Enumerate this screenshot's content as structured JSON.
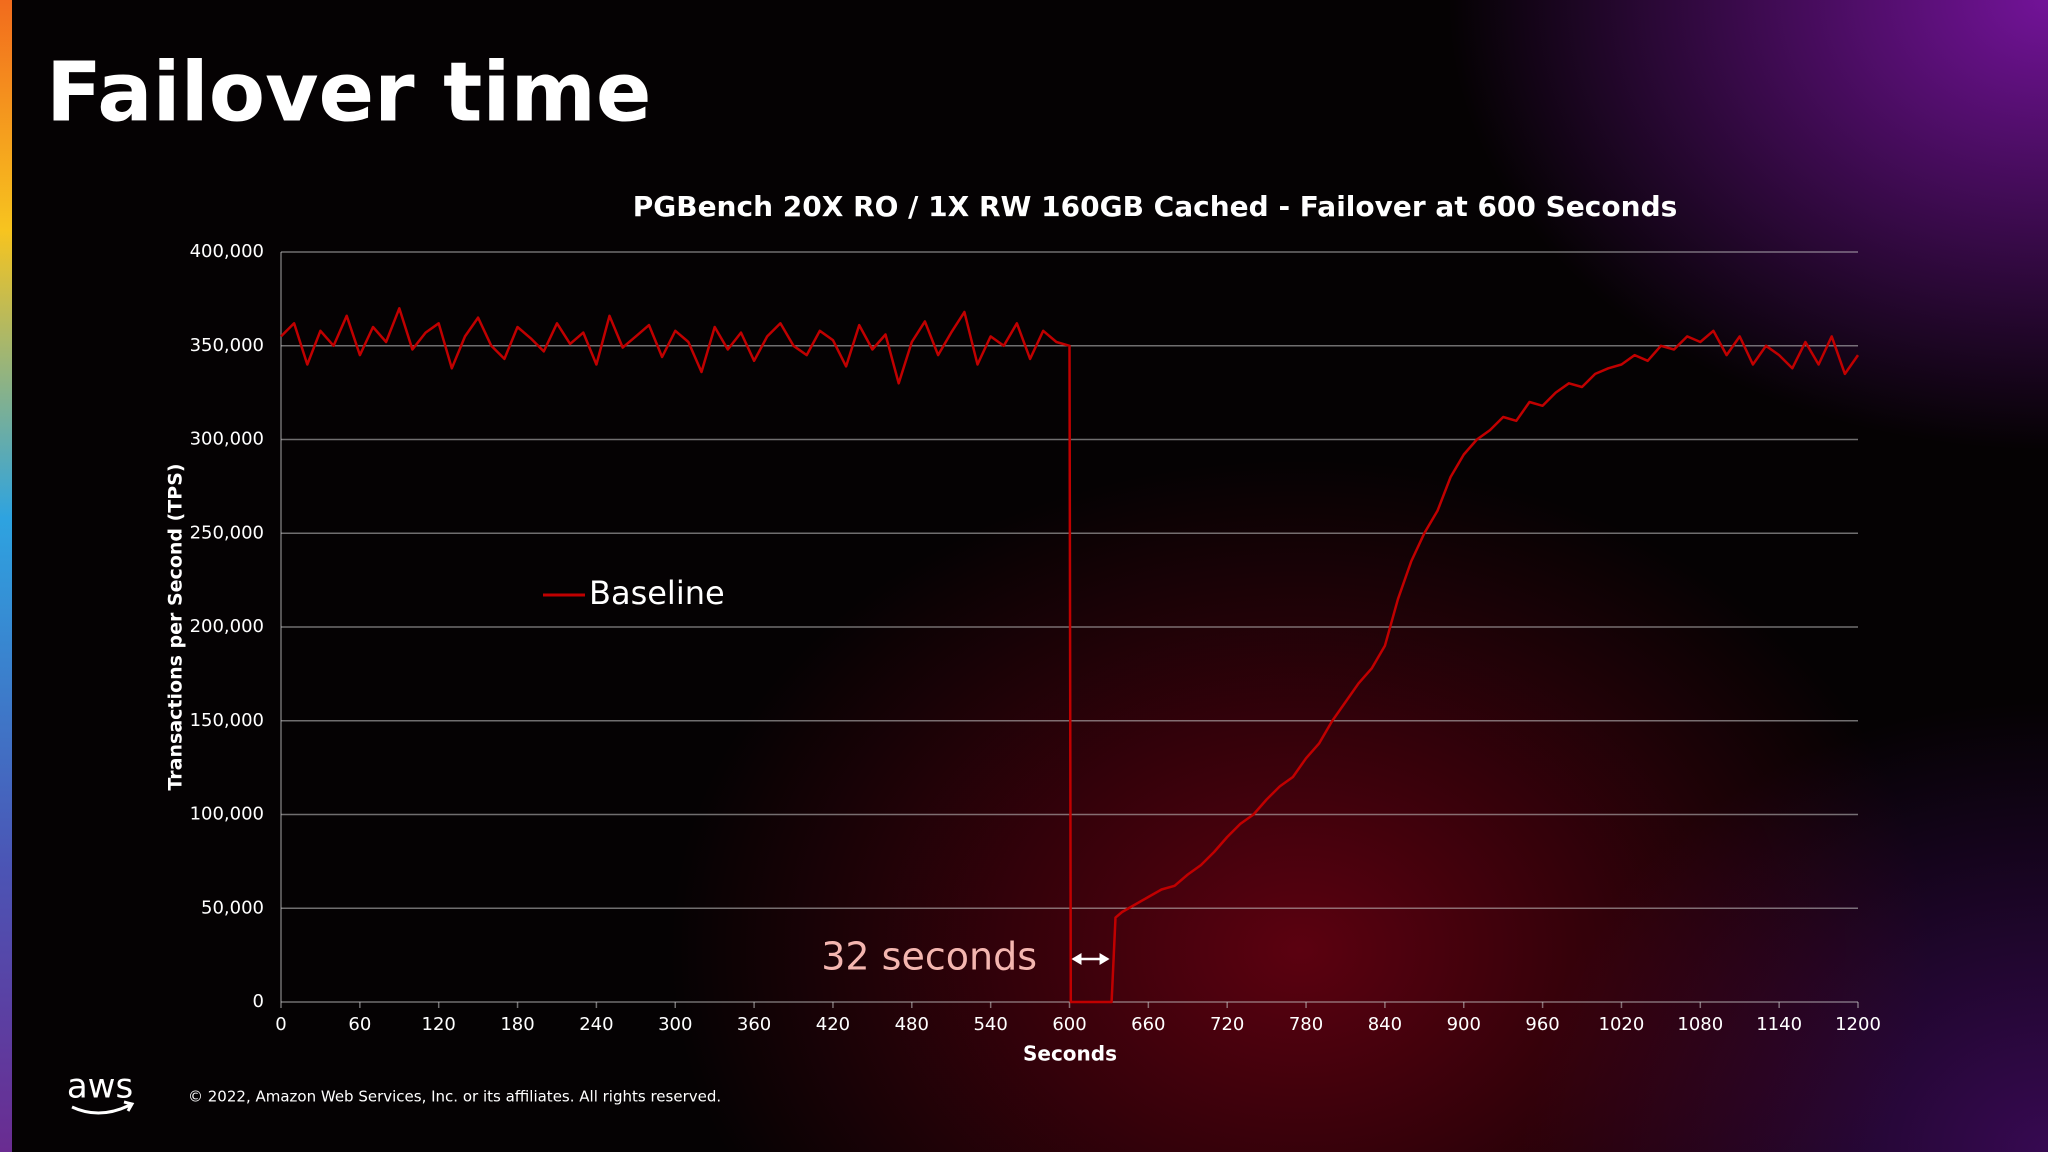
{
  "slide": {
    "title": "Failover time",
    "logo": "aws",
    "footer": "© 2022, Amazon Web Services, Inc. or its affiliates. All rights reserved."
  },
  "chart_data": {
    "type": "line",
    "title": "PGBench 20X RO / 1X RW 160GB Cached - Failover at 600 Seconds",
    "x_label": "Seconds",
    "y_label": "Transactions per Second (TPS)",
    "x": [
      0,
      10,
      20,
      30,
      40,
      50,
      60,
      70,
      80,
      90,
      100,
      110,
      120,
      130,
      140,
      150,
      160,
      170,
      180,
      190,
      200,
      210,
      220,
      230,
      240,
      250,
      260,
      270,
      280,
      290,
      300,
      310,
      320,
      330,
      340,
      350,
      360,
      370,
      380,
      390,
      400,
      410,
      420,
      430,
      440,
      450,
      460,
      470,
      480,
      490,
      500,
      510,
      520,
      530,
      540,
      550,
      560,
      570,
      580,
      590,
      600,
      601,
      632,
      635,
      640,
      650,
      660,
      670,
      680,
      690,
      700,
      710,
      720,
      730,
      740,
      750,
      760,
      770,
      780,
      790,
      800,
      810,
      820,
      830,
      840,
      850,
      860,
      870,
      880,
      890,
      900,
      910,
      920,
      930,
      940,
      950,
      960,
      970,
      980,
      990,
      1000,
      1010,
      1020,
      1030,
      1040,
      1050,
      1060,
      1070,
      1080,
      1090,
      1100,
      1110,
      1120,
      1130,
      1140,
      1150,
      1160,
      1170,
      1180,
      1190,
      1200
    ],
    "series": [
      {
        "name": "Baseline",
        "color": "#c00000",
        "values": [
          355000,
          362000,
          340000,
          358000,
          350000,
          366000,
          345000,
          360000,
          352000,
          370000,
          348000,
          357000,
          362000,
          338000,
          355000,
          365000,
          350000,
          343000,
          360000,
          354000,
          347000,
          362000,
          351000,
          357000,
          340000,
          366000,
          349000,
          355000,
          361000,
          344000,
          358000,
          352000,
          336000,
          360000,
          348000,
          357000,
          342000,
          355000,
          362000,
          350000,
          345000,
          358000,
          353000,
          339000,
          361000,
          348000,
          356000,
          330000,
          352000,
          363000,
          345000,
          357000,
          368000,
          340000,
          355000,
          350000,
          362000,
          343000,
          358000,
          352000,
          350000,
          0,
          0,
          45000,
          48000,
          52000,
          56000,
          60000,
          62000,
          68000,
          73000,
          80000,
          88000,
          95000,
          100000,
          108000,
          115000,
          120000,
          130000,
          138000,
          150000,
          160000,
          170000,
          178000,
          190000,
          215000,
          235000,
          250000,
          262000,
          280000,
          292000,
          300000,
          305000,
          312000,
          310000,
          320000,
          318000,
          325000,
          330000,
          328000,
          335000,
          338000,
          340000,
          345000,
          342000,
          350000,
          348000,
          355000,
          352000,
          358000,
          345000,
          355000,
          340000,
          350000,
          345000,
          338000,
          352000,
          340000,
          355000,
          335000,
          345000
        ]
      }
    ],
    "xlim": [
      0,
      1200
    ],
    "xticks": [
      0,
      60,
      120,
      180,
      240,
      300,
      360,
      420,
      480,
      540,
      600,
      660,
      720,
      780,
      840,
      900,
      960,
      1020,
      1080,
      1140,
      1200
    ],
    "ylim": [
      0,
      400000
    ],
    "yticks": [
      0,
      {
        "value": 50000,
        "label": "50,000"
      },
      {
        "value": 100000,
        "label": "100,000"
      },
      {
        "value": 150000,
        "label": "150,000"
      },
      {
        "value": 200000,
        "label": "200,000"
      },
      {
        "value": 250000,
        "label": "250,000"
      },
      {
        "value": 300000,
        "label": "300,000"
      },
      {
        "value": 350000,
        "label": "350,000"
      },
      {
        "value": 400000,
        "label": "400,000"
      }
    ],
    "grid": true,
    "annotation": {
      "text": "32 seconds",
      "x": [
        600,
        632
      ]
    }
  }
}
